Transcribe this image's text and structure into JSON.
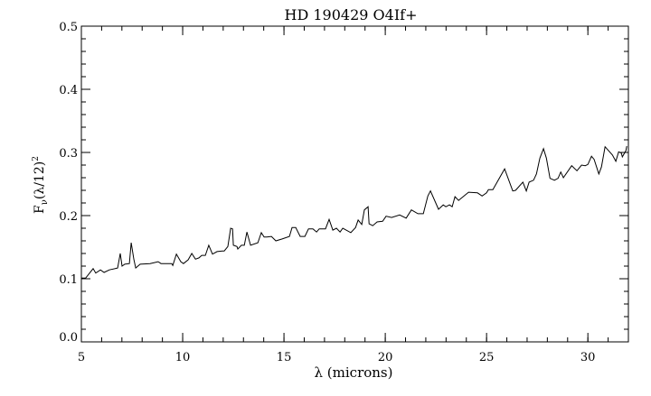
{
  "chart_data": {
    "type": "line",
    "title": "HD 190429 O4If+",
    "xlabel": "λ (microns)",
    "ylabel_main": "F",
    "ylabel_sub": "ν",
    "ylabel_rest": "(λ/12)",
    "ylabel_sup": "2",
    "xlim": [
      5,
      32
    ],
    "ylim": [
      0,
      0.5
    ],
    "x_major_ticks": [
      5,
      10,
      15,
      20,
      25,
      30
    ],
    "x_tick_labels": [
      "5",
      "10",
      "15",
      "20",
      "25",
      "30"
    ],
    "x_minor_step": 1,
    "y_major_ticks": [
      0.0,
      0.1,
      0.2,
      0.3,
      0.4,
      0.5
    ],
    "y_tick_labels": [
      "0.0",
      "0.1",
      "0.2",
      "0.3",
      "0.4",
      "0.5"
    ],
    "y_minor_step": 0.02,
    "grid": false,
    "line_color": "#000000",
    "series": [
      {
        "x": [
          5.0,
          5.21,
          5.58,
          5.71,
          5.94,
          6.12,
          6.38,
          6.79,
          6.92,
          7.01,
          7.14,
          7.37,
          7.46,
          7.59,
          7.68,
          7.9,
          8.39,
          8.79,
          8.93,
          9.46,
          9.51,
          9.69,
          9.91,
          10.04,
          10.27,
          10.45,
          10.63,
          10.8,
          10.94,
          11.12,
          11.29,
          11.47,
          11.7,
          11.96,
          12.05,
          12.23,
          12.37,
          12.46,
          12.5,
          12.68,
          12.72,
          12.9,
          13.04,
          13.17,
          13.35,
          13.71,
          13.88,
          14.02,
          14.15,
          14.38,
          14.6,
          14.91,
          15.27,
          15.4,
          15.58,
          15.8,
          16.03,
          16.21,
          16.43,
          16.61,
          16.74,
          17.05,
          17.23,
          17.41,
          17.59,
          17.77,
          17.9,
          18.3,
          18.53,
          18.66,
          18.84,
          18.97,
          19.15,
          19.2,
          19.38,
          19.6,
          19.87,
          20.04,
          20.31,
          20.71,
          21.03,
          21.29,
          21.61,
          21.88,
          22.1,
          22.23,
          22.63,
          22.86,
          22.99,
          23.17,
          23.3,
          23.44,
          23.62,
          24.11,
          24.55,
          24.78,
          25.0,
          25.09,
          25.31,
          25.89,
          26.29,
          26.43,
          26.79,
          26.96,
          27.1,
          27.32,
          27.46,
          27.63,
          27.81,
          27.95,
          28.13,
          28.35,
          28.53,
          28.66,
          28.79,
          29.2,
          29.46,
          29.69,
          29.87,
          30.0,
          30.18,
          30.31,
          30.54,
          30.67,
          30.85,
          31.21,
          31.38,
          31.52,
          31.65,
          31.7,
          31.88,
          31.92
        ],
        "y": [
          0.101,
          0.101,
          0.116,
          0.109,
          0.114,
          0.11,
          0.114,
          0.117,
          0.14,
          0.12,
          0.123,
          0.124,
          0.157,
          0.131,
          0.117,
          0.123,
          0.124,
          0.127,
          0.124,
          0.124,
          0.121,
          0.139,
          0.127,
          0.124,
          0.13,
          0.14,
          0.131,
          0.133,
          0.137,
          0.137,
          0.153,
          0.139,
          0.143,
          0.144,
          0.144,
          0.151,
          0.18,
          0.179,
          0.153,
          0.151,
          0.147,
          0.153,
          0.153,
          0.174,
          0.153,
          0.157,
          0.173,
          0.166,
          0.166,
          0.167,
          0.16,
          0.163,
          0.167,
          0.181,
          0.181,
          0.167,
          0.167,
          0.179,
          0.179,
          0.174,
          0.179,
          0.179,
          0.194,
          0.177,
          0.18,
          0.174,
          0.18,
          0.173,
          0.181,
          0.193,
          0.186,
          0.209,
          0.214,
          0.187,
          0.184,
          0.19,
          0.191,
          0.199,
          0.197,
          0.201,
          0.196,
          0.209,
          0.203,
          0.203,
          0.231,
          0.239,
          0.21,
          0.217,
          0.214,
          0.217,
          0.214,
          0.23,
          0.224,
          0.237,
          0.236,
          0.231,
          0.236,
          0.241,
          0.241,
          0.274,
          0.239,
          0.24,
          0.253,
          0.239,
          0.253,
          0.256,
          0.266,
          0.291,
          0.306,
          0.291,
          0.259,
          0.256,
          0.259,
          0.269,
          0.26,
          0.279,
          0.271,
          0.28,
          0.279,
          0.281,
          0.294,
          0.289,
          0.266,
          0.277,
          0.309,
          0.296,
          0.286,
          0.301,
          0.299,
          0.293,
          0.303,
          0.31
        ]
      }
    ]
  }
}
